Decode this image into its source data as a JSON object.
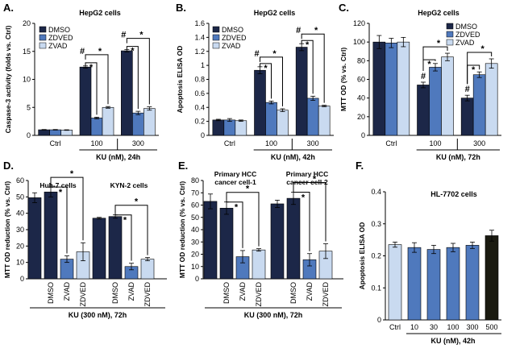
{
  "colors": {
    "DMSO": "#1c2748",
    "ZDVED": "#4f79bd",
    "ZVAD": "#c9daf0",
    "dark": "#1a1a10"
  },
  "chart_data": [
    {
      "panel": "A.",
      "type": "bar",
      "title": "HepG2 cells",
      "ylabel": "Caspase-3 activity (folds vs. Ctrl)",
      "xlabel": "KU (nM), 24h",
      "ylim": [
        0,
        20
      ],
      "yticks": [
        "0",
        "5",
        "10",
        "15",
        "20"
      ],
      "legend": [
        "DMSO",
        "ZDVED",
        "ZVAD"
      ],
      "groups": [
        {
          "label": "Ctrl",
          "bars": [
            {
              "s": "DMSO",
              "v": 1.0,
              "e": 0.05
            },
            {
              "s": "ZDVED",
              "v": 1.0,
              "e": 0.05
            },
            {
              "s": "ZVAD",
              "v": 0.95,
              "e": 0.05
            }
          ]
        },
        {
          "label": "100",
          "bars": [
            {
              "s": "DMSO",
              "v": 12.2,
              "e": 0.2
            },
            {
              "s": "ZDVED",
              "v": 3.1,
              "e": 0.15
            },
            {
              "s": "ZVAD",
              "v": 5.0,
              "e": 0.15
            }
          ]
        },
        {
          "label": "300",
          "bars": [
            {
              "s": "DMSO",
              "v": 15.1,
              "e": 0.2
            },
            {
              "s": "ZDVED",
              "v": 4.0,
              "e": 0.3
            },
            {
              "s": "ZVAD",
              "v": 4.8,
              "e": 0.3
            }
          ]
        }
      ],
      "hash": [
        "#",
        "#"
      ],
      "star": [
        "*",
        "*",
        "*",
        "*"
      ]
    },
    {
      "panel": "B.",
      "type": "bar",
      "title": "HepG2 cells",
      "ylabel": "Apoptosis ELISA OD",
      "xlabel": "KU (nM), 42h",
      "ylim": [
        0,
        1.6
      ],
      "yticks": [
        "0",
        "0.2",
        "0.4",
        "0.6",
        "0.8",
        "1",
        "1.2",
        "1.4",
        "1.6"
      ],
      "legend": [
        "DMSO",
        "ZDVED",
        "ZVAD"
      ],
      "groups": [
        {
          "label": "Ctrl",
          "bars": [
            {
              "s": "DMSO",
              "v": 0.22,
              "e": 0.01
            },
            {
              "s": "ZDVED",
              "v": 0.22,
              "e": 0.02
            },
            {
              "s": "ZVAD",
              "v": 0.21,
              "e": 0.01
            }
          ]
        },
        {
          "label": "100",
          "bars": [
            {
              "s": "DMSO",
              "v": 0.93,
              "e": 0.05
            },
            {
              "s": "ZDVED",
              "v": 0.47,
              "e": 0.02
            },
            {
              "s": "ZVAD",
              "v": 0.36,
              "e": 0.02
            }
          ]
        },
        {
          "label": "300",
          "bars": [
            {
              "s": "DMSO",
              "v": 1.26,
              "e": 0.05
            },
            {
              "s": "ZDVED",
              "v": 0.53,
              "e": 0.03
            },
            {
              "s": "ZVAD",
              "v": 0.42,
              "e": 0.01
            }
          ]
        }
      ],
      "hash": [
        "#",
        "#"
      ],
      "star": [
        "*",
        "*",
        "*",
        "*"
      ]
    },
    {
      "panel": "C.",
      "type": "bar",
      "title": "HepG2 cells",
      "ylabel": "MTT OD (% vs. Ctrl)",
      "xlabel": "KU (nM), 72h",
      "ylim": [
        0,
        120
      ],
      "yticks": [
        "0",
        "20",
        "40",
        "60",
        "80",
        "100",
        "120"
      ],
      "legend": [
        "DMSO",
        "ZDVED",
        "ZVAD"
      ],
      "groups": [
        {
          "label": "Ctrl",
          "bars": [
            {
              "s": "DMSO",
              "v": 100,
              "e": 7
            },
            {
              "s": "ZDVED",
              "v": 99,
              "e": 5
            },
            {
              "s": "ZVAD",
              "v": 100,
              "e": 5
            }
          ]
        },
        {
          "label": "100",
          "bars": [
            {
              "s": "DMSO",
              "v": 54,
              "e": 3
            },
            {
              "s": "ZDVED",
              "v": 73,
              "e": 4
            },
            {
              "s": "ZVAD",
              "v": 84,
              "e": 4
            }
          ]
        },
        {
          "label": "300",
          "bars": [
            {
              "s": "DMSO",
              "v": 40,
              "e": 3
            },
            {
              "s": "ZDVED",
              "v": 65,
              "e": 3
            },
            {
              "s": "ZVAD",
              "v": 77,
              "e": 5
            }
          ]
        }
      ],
      "hash": [
        "#",
        "#"
      ],
      "star": [
        "*",
        "*",
        "*",
        "*"
      ]
    },
    {
      "panel": "D.",
      "type": "bar",
      "ylabel": "MTT OD reduction (% vs. Ctrl)",
      "xlabel": "KU (300 nM), 72h",
      "ylim": [
        0,
        60
      ],
      "yticks": [
        "0",
        "10",
        "20",
        "30",
        "40",
        "50",
        "60"
      ],
      "cell_lines": [
        "Huh-7 cells",
        "KYN-2 cells"
      ],
      "bars": [
        {
          "label": "",
          "s": "DMSO",
          "v": 49.5,
          "e": 3
        },
        {
          "label": "DMSO",
          "s": "DMSO",
          "v": 53,
          "e": 3
        },
        {
          "label": "ZVAD",
          "s": "ZDVED",
          "v": 12,
          "e": 2
        },
        {
          "label": "ZDVED",
          "s": "ZVAD",
          "v": 16.5,
          "e": 5.5
        },
        {
          "label": "",
          "s": "DMSO",
          "v": 37,
          "e": 0.5
        },
        {
          "label": "DMSO",
          "s": "DMSO",
          "v": 38,
          "e": 1
        },
        {
          "label": "ZVAD",
          "s": "ZDVED",
          "v": 7.5,
          "e": 2
        },
        {
          "label": "ZDVED",
          "s": "ZVAD",
          "v": 12,
          "e": 1
        }
      ],
      "star": [
        "*",
        "*",
        "*",
        "*"
      ]
    },
    {
      "panel": "E.",
      "type": "bar",
      "ylabel": "MTT OD reduction (% vs. Ctrl)",
      "xlabel": "KU (300 nM), 72h",
      "ylim": [
        0,
        80
      ],
      "yticks": [
        "0",
        "10",
        "20",
        "30",
        "40",
        "50",
        "60",
        "70",
        "80"
      ],
      "cell_lines": [
        "Primary HCC",
        "cancer cell-1",
        "Primary HCC",
        "cancer cell-2"
      ],
      "bars": [
        {
          "label": "",
          "s": "DMSO",
          "v": 63,
          "e": 6
        },
        {
          "label": "DMSO",
          "s": "DMSO",
          "v": 57.5,
          "e": 5
        },
        {
          "label": "ZVAD",
          "s": "ZDVED",
          "v": 18,
          "e": 5
        },
        {
          "label": "ZDVED",
          "s": "ZVAD",
          "v": 23.5,
          "e": 1
        },
        {
          "label": "",
          "s": "DMSO",
          "v": 61,
          "e": 3
        },
        {
          "label": "DMSO",
          "s": "DMSO",
          "v": 65.5,
          "e": 5
        },
        {
          "label": "ZVAD",
          "s": "ZDVED",
          "v": 15.5,
          "e": 5
        },
        {
          "label": "ZDVED",
          "s": "ZVAD",
          "v": 22.5,
          "e": 6
        }
      ],
      "star": [
        "*",
        "*",
        "*",
        "*"
      ]
    },
    {
      "panel": "F.",
      "type": "bar",
      "title": "HL-7702 cells",
      "ylabel": "Apoptosis ELISA OD",
      "xlabel": "KU (nM), 42h",
      "ylim": [
        0,
        0.4
      ],
      "yticks": [
        "0",
        "0.1",
        "0.2",
        "0.3",
        "0.4"
      ],
      "bars": [
        {
          "label": "Ctrl",
          "s": "ZVAD",
          "v": 0.235,
          "e": 0.008
        },
        {
          "label": "10",
          "s": "ZDVED",
          "v": 0.226,
          "e": 0.015
        },
        {
          "label": "30",
          "s": "ZDVED",
          "v": 0.22,
          "e": 0.013
        },
        {
          "label": "100",
          "s": "ZDVED",
          "v": 0.226,
          "e": 0.013
        },
        {
          "label": "300",
          "s": "ZDVED",
          "v": 0.233,
          "e": 0.01
        },
        {
          "label": "500",
          "s": "dark",
          "v": 0.263,
          "e": 0.017
        }
      ]
    }
  ]
}
